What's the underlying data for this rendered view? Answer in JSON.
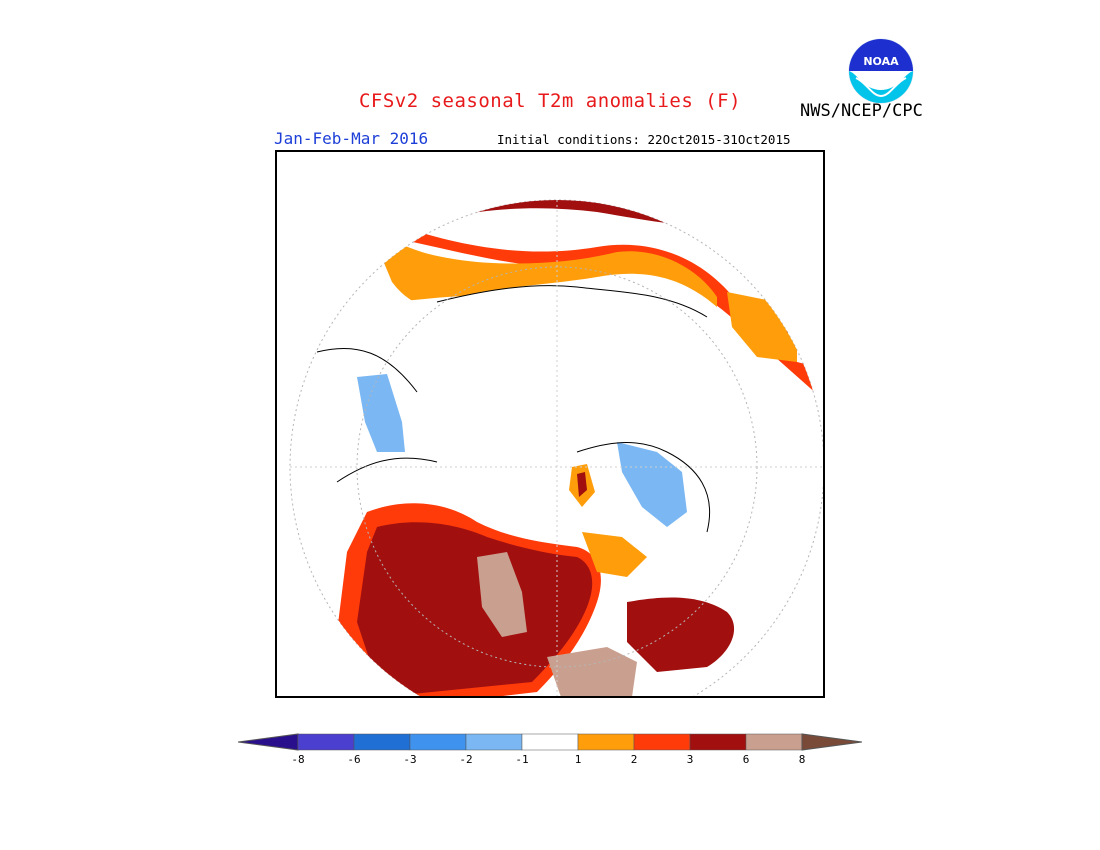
{
  "header": {
    "title": "CFSv2 seasonal T2m anomalies (F)",
    "agency": "NWS/NCEP/CPC",
    "season": "Jan-Feb-Mar 2016",
    "initial_conditions": "Initial conditions: 22Oct2015-31Oct2015"
  },
  "logo": {
    "text": "NOAA",
    "icon": "noaa-logo"
  },
  "colorbar": {
    "tick_labels": [
      "-8",
      "-6",
      "-3",
      "-2",
      "-1",
      "1",
      "2",
      "3",
      "6",
      "8"
    ],
    "colors": [
      "#2a0f8c",
      "#4b3fcf",
      "#1f6fd4",
      "#3f93ee",
      "#7ab7f3",
      "#ffffff",
      "#ff9e0a",
      "#ff3b0a",
      "#a20f0f",
      "#c9a08f",
      "#7a4a38"
    ]
  }
}
